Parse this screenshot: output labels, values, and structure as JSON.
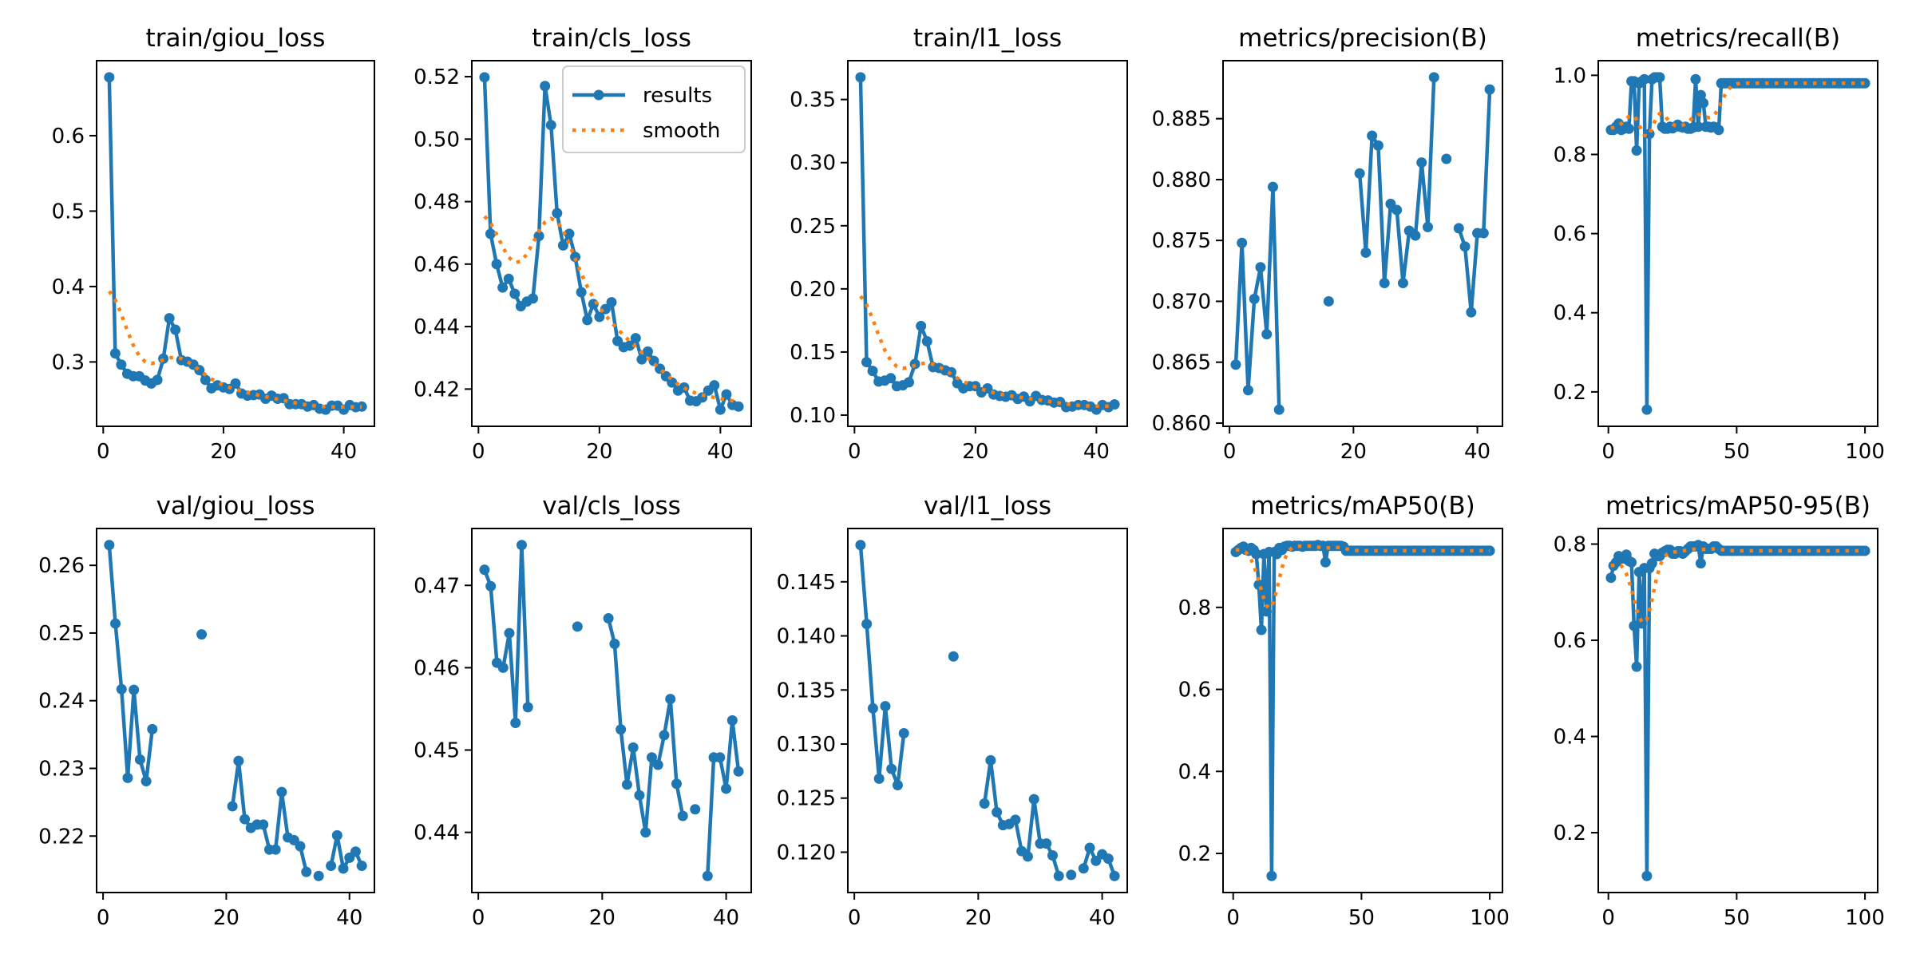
{
  "figure": {
    "colors": {
      "results": "#1f77b4",
      "smooth": "#ff7f0e",
      "axis": "#000000",
      "legend_border": "#cccccc"
    },
    "legend": {
      "entries": [
        "results",
        "smooth"
      ],
      "panel": 1,
      "placement": "upper-right"
    },
    "smooth_method": "gaussian",
    "smooth_sigma": 3
  },
  "chart_data": [
    {
      "type": "line",
      "title": "train/giou_loss",
      "row": 0,
      "col": 0,
      "x": [
        1,
        2,
        3,
        4,
        5,
        6,
        7,
        8,
        9,
        10,
        11,
        12,
        13,
        14,
        15,
        16,
        17,
        18,
        19,
        20,
        21,
        22,
        23,
        24,
        25,
        26,
        27,
        28,
        29,
        30,
        31,
        32,
        33,
        34,
        35,
        36,
        37,
        38,
        39,
        40,
        41,
        42,
        43
      ],
      "values": [
        0.6774,
        0.3113,
        0.2964,
        0.2843,
        0.2811,
        0.2811,
        0.2754,
        0.2714,
        0.2762,
        0.3044,
        0.358,
        0.3427,
        0.3024,
        0.3004,
        0.2964,
        0.2891,
        0.2762,
        0.265,
        0.269,
        0.2662,
        0.2641,
        0.2714,
        0.2581,
        0.2553,
        0.2561,
        0.2569,
        0.2512,
        0.2553,
        0.2512,
        0.252,
        0.244,
        0.244,
        0.244,
        0.2408,
        0.2428,
        0.238,
        0.2367,
        0.242,
        0.242,
        0.2367,
        0.2428,
        0.24,
        0.2408
      ],
      "xticks": [
        0,
        20,
        40
      ],
      "yticks": [
        0.3,
        0.4,
        0.5,
        0.6
      ],
      "ytick_labels": [
        "0.3",
        "0.4",
        "0.5",
        "0.6"
      ],
      "show_smooth": true
    },
    {
      "type": "line",
      "title": "train/cls_loss",
      "row": 0,
      "col": 1,
      "x": [
        1,
        2,
        3,
        4,
        5,
        6,
        7,
        8,
        9,
        10,
        11,
        12,
        13,
        14,
        15,
        16,
        17,
        18,
        19,
        20,
        21,
        22,
        23,
        24,
        25,
        26,
        27,
        28,
        29,
        30,
        31,
        32,
        33,
        34,
        35,
        36,
        37,
        38,
        39,
        40,
        41,
        42,
        43
      ],
      "values": [
        0.5198,
        0.4697,
        0.46,
        0.4525,
        0.4553,
        0.4505,
        0.4465,
        0.448,
        0.449,
        0.469,
        0.517,
        0.5045,
        0.4763,
        0.466,
        0.4697,
        0.4623,
        0.451,
        0.4421,
        0.4472,
        0.4431,
        0.4456,
        0.4478,
        0.4354,
        0.4334,
        0.4339,
        0.4363,
        0.4295,
        0.432,
        0.429,
        0.4265,
        0.4241,
        0.4221,
        0.4195,
        0.4205,
        0.4163,
        0.4161,
        0.4173,
        0.4195,
        0.4212,
        0.4134,
        0.4183,
        0.4149,
        0.4144
      ],
      "xticks": [
        0,
        20,
        40
      ],
      "yticks": [
        0.42,
        0.44,
        0.46,
        0.48,
        0.5,
        0.52
      ],
      "ytick_labels": [
        "0.42",
        "0.44",
        "0.46",
        "0.48",
        "0.50",
        "0.52"
      ],
      "show_smooth": true
    },
    {
      "type": "line",
      "title": "train/l1_loss",
      "row": 0,
      "col": 2,
      "x": [
        1,
        2,
        3,
        4,
        5,
        6,
        7,
        8,
        9,
        10,
        11,
        12,
        13,
        14,
        15,
        16,
        17,
        18,
        19,
        20,
        21,
        22,
        23,
        24,
        25,
        26,
        27,
        28,
        29,
        30,
        31,
        32,
        33,
        34,
        35,
        36,
        37,
        38,
        39,
        40,
        41,
        42,
        43
      ],
      "values": [
        0.3676,
        0.142,
        0.135,
        0.1266,
        0.1273,
        0.1292,
        0.1229,
        0.1236,
        0.126,
        0.1405,
        0.1706,
        0.1585,
        0.138,
        0.1373,
        0.1355,
        0.134,
        0.1253,
        0.1212,
        0.1229,
        0.1229,
        0.118,
        0.1212,
        0.1163,
        0.1152,
        0.1145,
        0.1157,
        0.1128,
        0.1147,
        0.1109,
        0.1152,
        0.112,
        0.1116,
        0.1099,
        0.1104,
        0.1063,
        0.1068,
        0.108,
        0.108,
        0.1068,
        0.1043,
        0.108,
        0.1063,
        0.1085
      ],
      "xticks": [
        0,
        20,
        40
      ],
      "yticks": [
        0.1,
        0.15,
        0.2,
        0.25,
        0.3,
        0.35
      ],
      "ytick_labels": [
        "0.10",
        "0.15",
        "0.20",
        "0.25",
        "0.30",
        "0.35"
      ],
      "show_smooth": true
    },
    {
      "type": "line",
      "title": "metrics/precision(B)",
      "row": 0,
      "col": 3,
      "x": [
        1,
        2,
        3,
        4,
        5,
        6,
        7,
        8,
        9,
        10,
        11,
        12,
        13,
        14,
        15,
        16,
        17,
        18,
        19,
        20,
        21,
        22,
        23,
        24,
        25,
        26,
        27,
        28,
        29,
        30,
        31,
        32,
        33,
        34,
        35,
        36,
        37,
        38,
        39,
        40,
        41,
        42
      ],
      "values": [
        0.8648,
        0.8748,
        0.8627,
        0.8702,
        0.8728,
        0.8673,
        0.8794,
        0.8611,
        null,
        null,
        null,
        null,
        null,
        null,
        null,
        0.87,
        null,
        null,
        null,
        null,
        0.8805,
        0.874,
        0.8836,
        0.8828,
        0.8715,
        0.878,
        0.8775,
        0.8715,
        0.8758,
        0.8754,
        0.8814,
        0.8761,
        0.8884,
        null,
        0.8817,
        null,
        0.876,
        0.8745,
        0.8691,
        0.8756,
        0.8756,
        0.8874
      ],
      "xticks": [
        0,
        20,
        40
      ],
      "yticks": [
        0.86,
        0.865,
        0.87,
        0.875,
        0.88,
        0.885
      ],
      "ytick_labels": [
        "0.860",
        "0.865",
        "0.870",
        "0.875",
        "0.880",
        "0.885"
      ],
      "show_smooth": false
    },
    {
      "type": "line",
      "title": "metrics/recall(B)",
      "row": 0,
      "col": 4,
      "x_range": [
        1,
        100
      ],
      "values": [
        0.862,
        0.862,
        0.87,
        0.878,
        0.862,
        0.865,
        0.87,
        0.865,
        0.985,
        0.985,
        0.81,
        0.98,
        0.985,
        0.99,
        0.155,
        0.852,
        0.99,
        0.995,
        0.995,
        0.995,
        0.87,
        0.865,
        0.865,
        0.87,
        0.866,
        0.87,
        0.875,
        0.87,
        0.868,
        0.87,
        0.865,
        0.865,
        0.868,
        0.99,
        0.87,
        0.95,
        0.93,
        0.87,
        0.87,
        0.868,
        0.87,
        0.868,
        0.862
      ],
      "tail_value": 0.98,
      "xticks": [
        0,
        50,
        100
      ],
      "yticks": [
        0.2,
        0.4,
        0.6,
        0.8,
        1.0
      ],
      "ytick_labels": [
        "0.2",
        "0.4",
        "0.6",
        "0.8",
        "1.0"
      ],
      "show_smooth": true
    },
    {
      "type": "line",
      "title": "val/giou_loss",
      "row": 1,
      "col": 0,
      "x": [
        1,
        2,
        3,
        4,
        5,
        6,
        7,
        8,
        9,
        10,
        11,
        12,
        13,
        14,
        15,
        16,
        17,
        18,
        19,
        20,
        21,
        22,
        23,
        24,
        25,
        26,
        27,
        28,
        29,
        30,
        31,
        32,
        33,
        34,
        35,
        36,
        37,
        38,
        39,
        40,
        41,
        42
      ],
      "values": [
        0.263,
        0.2514,
        0.2417,
        0.2286,
        0.2416,
        0.2313,
        0.2281,
        0.2358,
        null,
        null,
        null,
        null,
        null,
        null,
        null,
        0.2498,
        null,
        null,
        null,
        null,
        0.2244,
        0.2311,
        0.2225,
        0.2212,
        0.2217,
        0.2217,
        0.218,
        0.218,
        0.2265,
        0.2198,
        0.2194,
        0.2185,
        0.2147,
        null,
        0.2141,
        null,
        0.2156,
        0.2201,
        0.2152,
        0.2168,
        0.2177,
        0.2156
      ],
      "xticks": [
        0,
        20,
        40
      ],
      "yticks": [
        0.22,
        0.23,
        0.24,
        0.25,
        0.26
      ],
      "ytick_labels": [
        "0.22",
        "0.23",
        "0.24",
        "0.25",
        "0.26"
      ],
      "show_smooth": false
    },
    {
      "type": "line",
      "title": "val/cls_loss",
      "row": 1,
      "col": 1,
      "x": [
        1,
        2,
        3,
        4,
        5,
        6,
        7,
        8,
        9,
        10,
        11,
        12,
        13,
        14,
        15,
        16,
        17,
        18,
        19,
        20,
        21,
        22,
        23,
        24,
        25,
        26,
        27,
        28,
        29,
        30,
        31,
        32,
        33,
        34,
        35,
        36,
        37,
        38,
        39,
        40,
        41,
        42
      ],
      "values": [
        0.4719,
        0.4699,
        0.4606,
        0.46,
        0.4642,
        0.4533,
        0.4749,
        0.4552,
        null,
        null,
        null,
        null,
        null,
        null,
        null,
        0.465,
        null,
        null,
        null,
        null,
        0.466,
        0.4629,
        0.4525,
        0.4458,
        0.4503,
        0.4445,
        0.44,
        0.4491,
        0.4482,
        0.4518,
        0.4562,
        0.4459,
        0.442,
        null,
        0.4428,
        null,
        0.4347,
        0.4491,
        0.4491,
        0.4453,
        0.4536,
        0.4474
      ],
      "xticks": [
        0,
        20,
        40
      ],
      "yticks": [
        0.44,
        0.45,
        0.46,
        0.47
      ],
      "ytick_labels": [
        "0.44",
        "0.45",
        "0.46",
        "0.47"
      ],
      "show_smooth": false
    },
    {
      "type": "line",
      "title": "val/l1_loss",
      "row": 1,
      "col": 2,
      "x": [
        1,
        2,
        3,
        4,
        5,
        6,
        7,
        8,
        9,
        10,
        11,
        12,
        13,
        14,
        15,
        16,
        17,
        18,
        19,
        20,
        21,
        22,
        23,
        24,
        25,
        26,
        27,
        28,
        29,
        30,
        31,
        32,
        33,
        34,
        35,
        36,
        37,
        38,
        39,
        40,
        41,
        42
      ],
      "values": [
        0.1484,
        0.1411,
        0.1333,
        0.1268,
        0.1335,
        0.1277,
        0.1262,
        0.131,
        null,
        null,
        null,
        null,
        null,
        null,
        null,
        0.1381,
        null,
        null,
        null,
        null,
        0.1245,
        0.1285,
        0.1237,
        0.1225,
        0.1226,
        0.123,
        0.1201,
        0.1196,
        0.1249,
        0.1208,
        0.1208,
        0.1197,
        0.1178,
        null,
        0.1179,
        null,
        0.1185,
        0.1204,
        0.1192,
        0.1198,
        0.1194,
        0.1178
      ],
      "xticks": [
        0,
        20,
        40
      ],
      "yticks": [
        0.12,
        0.125,
        0.13,
        0.135,
        0.14,
        0.145
      ],
      "ytick_labels": [
        "0.120",
        "0.125",
        "0.130",
        "0.135",
        "0.140",
        "0.145"
      ],
      "show_smooth": false
    },
    {
      "type": "line",
      "title": "metrics/mAP50(B)",
      "row": 1,
      "col": 3,
      "x_range": [
        1,
        100
      ],
      "values": [
        0.935,
        0.94,
        0.945,
        0.948,
        0.94,
        0.938,
        0.945,
        0.94,
        0.93,
        0.855,
        0.745,
        0.93,
        0.79,
        0.935,
        0.145,
        0.935,
        0.93,
        0.945,
        0.94,
        0.948,
        0.95,
        0.95,
        0.948,
        0.95,
        0.95,
        0.95,
        0.948,
        0.95,
        0.95,
        0.95,
        0.95,
        0.95,
        0.952,
        0.95,
        0.95,
        0.91,
        0.95,
        0.95,
        0.95,
        0.95,
        0.95,
        0.95,
        0.948
      ],
      "tail_value": 0.938,
      "xticks": [
        0,
        50,
        100
      ],
      "yticks": [
        0.2,
        0.4,
        0.6,
        0.8
      ],
      "ytick_labels": [
        "0.2",
        "0.4",
        "0.6",
        "0.8"
      ],
      "show_smooth": true
    },
    {
      "type": "line",
      "title": "metrics/mAP50-95(B)",
      "row": 1,
      "col": 4,
      "x_range": [
        1,
        100
      ],
      "values": [
        0.73,
        0.755,
        0.762,
        0.775,
        0.77,
        0.77,
        0.778,
        0.765,
        0.762,
        0.63,
        0.545,
        0.742,
        0.635,
        0.75,
        0.11,
        0.75,
        0.76,
        0.78,
        0.775,
        0.775,
        0.782,
        0.785,
        0.788,
        0.788,
        0.78,
        0.78,
        0.785,
        0.785,
        0.78,
        0.785,
        0.79,
        0.795,
        0.795,
        0.795,
        0.798,
        0.76,
        0.795,
        0.79,
        0.79,
        0.79,
        0.795,
        0.795,
        0.79
      ],
      "tail_value": 0.786,
      "xticks": [
        0,
        50,
        100
      ],
      "yticks": [
        0.2,
        0.4,
        0.6,
        0.8
      ],
      "ytick_labels": [
        "0.2",
        "0.4",
        "0.6",
        "0.8"
      ],
      "show_smooth": true
    }
  ]
}
